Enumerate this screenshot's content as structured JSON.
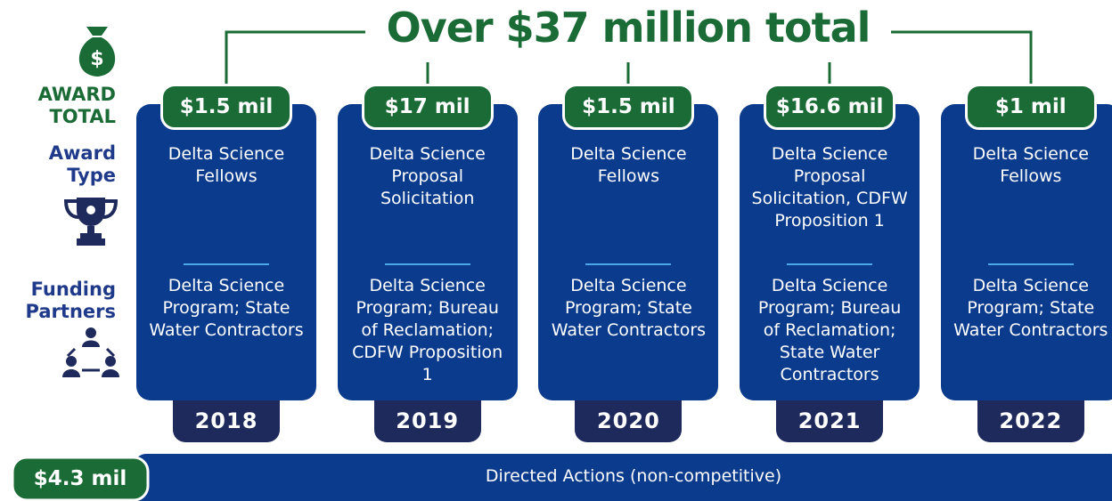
{
  "title": "Over $37 million total",
  "sidebar": {
    "award_total": "AWARD TOTAL",
    "award_type": "Award Type",
    "funding_partners": "Funding Partners"
  },
  "columns": [
    {
      "award": "$1.5 mil",
      "type": "Delta Science Fellows",
      "partners": "Delta Science Program; State Water Contractors",
      "year": "2018"
    },
    {
      "award": "$17 mil",
      "type": "Delta Science Proposal Solicitation",
      "partners": "Delta Science Program; Bureau of Reclamation; CDFW Proposition 1",
      "year": "2019"
    },
    {
      "award": "$1.5 mil",
      "type": "Delta Science Fellows",
      "partners": "Delta Science Program; State Water Contractors",
      "year": "2020"
    },
    {
      "award": "$16.6 mil",
      "type": "Delta Science Proposal Solicitation, CDFW Proposition 1",
      "partners": "Delta Science Program; Bureau of Reclamation; State Water Contractors",
      "year": "2021"
    },
    {
      "award": "$1 mil",
      "type": "Delta Science Fellows",
      "partners": "Delta Science Program; State Water Contractors",
      "year": "2022"
    }
  ],
  "directed": {
    "award": "$4.3 mil",
    "label": "Directed Actions (non-competitive)"
  }
}
